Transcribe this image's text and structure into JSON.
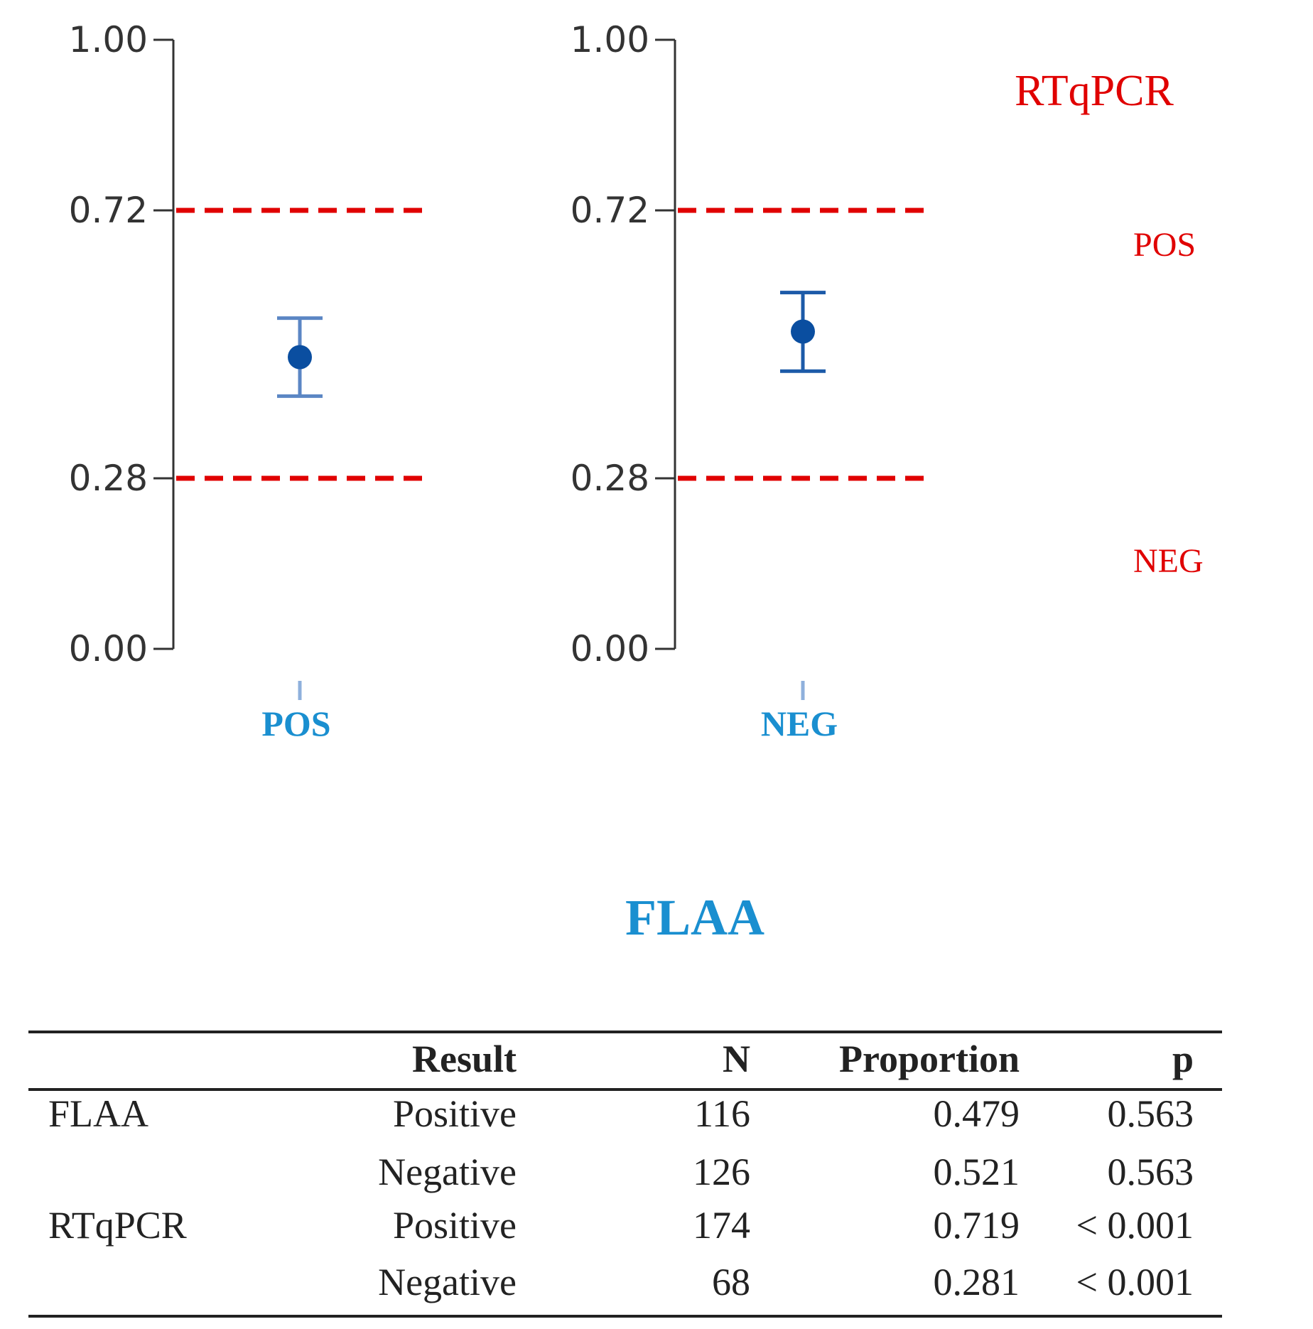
{
  "chart_data": [
    {
      "type": "errorbar",
      "panel": "left",
      "category": "POS",
      "ylim": [
        0,
        1
      ],
      "yticks": [
        "0.00",
        "0.28",
        "0.72",
        "1.00"
      ],
      "ytick_values": [
        0.0,
        0.28,
        0.72,
        1.0
      ],
      "point": {
        "value": 0.479,
        "lower": 0.415,
        "upper": 0.543
      },
      "ref_lines": [
        0.72,
        0.28
      ]
    },
    {
      "type": "errorbar",
      "panel": "right",
      "category": "NEG",
      "ylim": [
        0,
        1
      ],
      "yticks": [
        "0.00",
        "0.28",
        "0.72",
        "1.00"
      ],
      "ytick_values": [
        0.0,
        0.28,
        0.72,
        1.0
      ],
      "point": {
        "value": 0.521,
        "lower": 0.456,
        "upper": 0.585
      },
      "ref_lines": [
        0.72,
        0.28
      ]
    }
  ],
  "legend": {
    "title": "RTqPCR",
    "pos_label": "POS",
    "neg_label": "NEG"
  },
  "xlabel": "FLAA",
  "colors": {
    "reference": "#e00000",
    "point": "#0a4ea0",
    "errorbar_left": "#5b86c4",
    "errorbar_right": "#1c5aa8",
    "category_text": "#1a8fd0",
    "axis": "#333333"
  },
  "table": {
    "headers": [
      "",
      "Result",
      "N",
      "Proportion",
      "p"
    ],
    "rows": [
      {
        "group": "FLAA",
        "result": "Positive",
        "n": "116",
        "proportion": "0.479",
        "p": "0.563"
      },
      {
        "group": "",
        "result": "Negative",
        "n": "126",
        "proportion": "0.521",
        "p": "0.563"
      },
      {
        "group": "RTqPCR",
        "result": "Positive",
        "n": "174",
        "proportion": "0.719",
        "p": "< 0.001"
      },
      {
        "group": "",
        "result": "Negative",
        "n": "68",
        "proportion": "0.281",
        "p": "< 0.001"
      }
    ]
  }
}
